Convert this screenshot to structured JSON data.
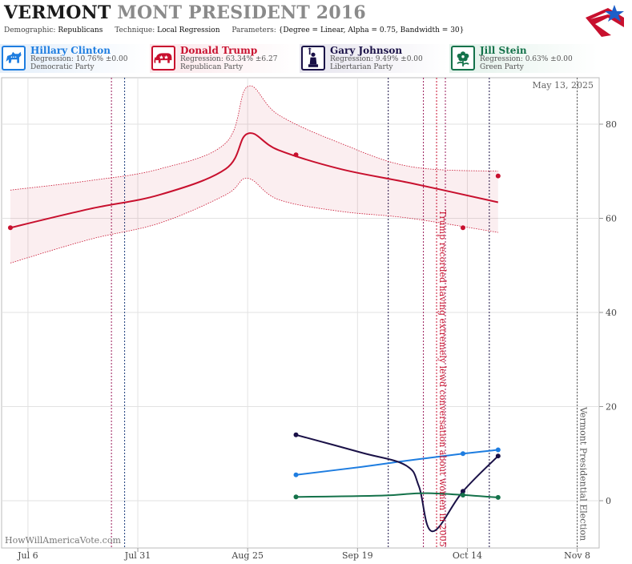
{
  "header": {
    "title_state": "VERMONT",
    "title_rest": "MONT PRESIDENT 2016",
    "demographic_label": "Demographic:",
    "demographic_value": "Republicans",
    "technique_label": "Technique:",
    "technique_value": "Local Regression",
    "parameters_label": "Parameters:",
    "parameters_value": "{Degree = Linear, Alpha = 0.75, Bandwidth = 30}"
  },
  "candidates": [
    {
      "name": "Hillary Clinton",
      "regression": "Regression: 10.76% ±0.00",
      "party": "Democratic Party",
      "color": "#1e7de0",
      "icon": "donkey-icon"
    },
    {
      "name": "Donald Trump",
      "regression": "Regression: 63.34% ±6.27",
      "party": "Republican Party",
      "color": "#c8102e",
      "icon": "elephant-icon"
    },
    {
      "name": "Gary Johnson",
      "regression": "Regression: 9.49% ±0.00",
      "party": "Libertarian Party",
      "color": "#1a1147",
      "icon": "liberty-statue-icon"
    },
    {
      "name": "Jill Stein",
      "regression": "Regression: 0.63% ±0.00",
      "party": "Green Party",
      "color": "#14724a",
      "icon": "flower-icon"
    }
  ],
  "date_stamp": "May 13, 2025",
  "credit": "HowWillAmericaVote.com",
  "chart_data": {
    "type": "line",
    "x_ticks": [
      "Jul 6",
      "Jul 31",
      "Aug 25",
      "Sep 19",
      "Oct 14",
      "Nov 8"
    ],
    "y_ticks": [
      0,
      20,
      40,
      60,
      80
    ],
    "ylim": [
      -10,
      90
    ],
    "xlim_dates": [
      "2016-06-30",
      "2016-11-13"
    ],
    "grid": true,
    "series": [
      {
        "name": "Donald Trump",
        "color": "#c8102e",
        "trend": [
          [
            "2016-07-02",
            58
          ],
          [
            "2016-07-20",
            62
          ],
          [
            "2016-08-05",
            65
          ],
          [
            "2016-08-20",
            70.5
          ],
          [
            "2016-08-25",
            78
          ],
          [
            "2016-09-01",
            74.5
          ],
          [
            "2016-09-15",
            70.5
          ],
          [
            "2016-10-01",
            67.5
          ],
          [
            "2016-10-21",
            63.4
          ]
        ],
        "band_upper": [
          [
            "2016-07-02",
            66
          ],
          [
            "2016-07-20",
            68
          ],
          [
            "2016-08-05",
            70.5
          ],
          [
            "2016-08-20",
            76
          ],
          [
            "2016-08-25",
            88
          ],
          [
            "2016-09-01",
            82
          ],
          [
            "2016-09-15",
            76
          ],
          [
            "2016-10-01",
            71
          ],
          [
            "2016-10-21",
            70
          ]
        ],
        "band_lower": [
          [
            "2016-07-02",
            50.5
          ],
          [
            "2016-07-20",
            55.5
          ],
          [
            "2016-08-05",
            59
          ],
          [
            "2016-08-20",
            65
          ],
          [
            "2016-08-25",
            68.5
          ],
          [
            "2016-09-01",
            64
          ],
          [
            "2016-09-15",
            61.5
          ],
          [
            "2016-10-01",
            60
          ],
          [
            "2016-10-21",
            57
          ]
        ],
        "polls": [
          [
            "2016-07-02",
            58
          ],
          [
            "2016-09-05",
            73.5
          ],
          [
            "2016-10-13",
            58
          ],
          [
            "2016-10-21",
            69
          ]
        ]
      },
      {
        "name": "Hillary Clinton",
        "color": "#1e7de0",
        "trend": [
          [
            "2016-09-05",
            5.5
          ],
          [
            "2016-09-20",
            7.2
          ],
          [
            "2016-10-01",
            8.6
          ],
          [
            "2016-10-13",
            10
          ],
          [
            "2016-10-21",
            10.8
          ]
        ],
        "polls": [
          [
            "2016-09-05",
            5.5
          ],
          [
            "2016-10-13",
            10
          ],
          [
            "2016-10-21",
            10.8
          ]
        ]
      },
      {
        "name": "Gary Johnson",
        "color": "#1a1147",
        "trend": [
          [
            "2016-09-05",
            14
          ],
          [
            "2016-09-20",
            10.2
          ],
          [
            "2016-09-30",
            7.5
          ],
          [
            "2016-10-03",
            3
          ],
          [
            "2016-10-06",
            -6.5
          ],
          [
            "2016-10-13",
            2
          ],
          [
            "2016-10-21",
            9.5
          ]
        ],
        "polls": [
          [
            "2016-09-05",
            14
          ],
          [
            "2016-10-13",
            2
          ],
          [
            "2016-10-21",
            9.5
          ]
        ]
      },
      {
        "name": "Jill Stein",
        "color": "#14724a",
        "trend": [
          [
            "2016-09-05",
            0.8
          ],
          [
            "2016-09-25",
            1.1
          ],
          [
            "2016-10-05",
            1.6
          ],
          [
            "2016-10-21",
            0.7
          ]
        ],
        "polls": [
          [
            "2016-09-05",
            0.8
          ],
          [
            "2016-10-13",
            1.2
          ],
          [
            "2016-10-21",
            0.7
          ]
        ]
      }
    ],
    "events": [
      {
        "date": "2016-07-25",
        "color": "#9a1a5a"
      },
      {
        "date": "2016-07-28",
        "color": "#1a3a7a"
      },
      {
        "date": "2016-09-26",
        "color": "#1a1147"
      },
      {
        "date": "2016-10-04",
        "color": "#9a1a5a"
      },
      {
        "date": "2016-10-07",
        "color": "#c8102e",
        "label": "Trump recorded having extremely lewd conversation about women in 2005"
      },
      {
        "date": "2016-10-09",
        "color": "#9a1a5a"
      },
      {
        "date": "2016-10-19",
        "color": "#1a1147"
      },
      {
        "date": "2016-11-08",
        "color": "#555555",
        "label": "Vermont Presidential Election"
      }
    ]
  }
}
